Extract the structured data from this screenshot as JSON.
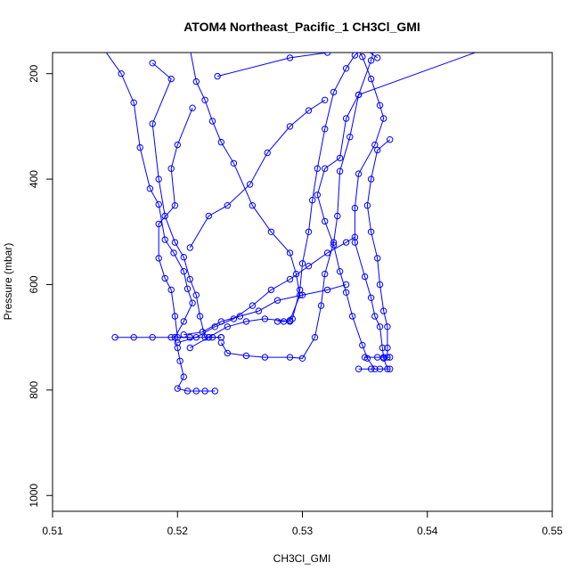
{
  "chart_data": {
    "type": "line",
    "title": "ATOM4 Northeast_Pacific_1 CH3Cl_GMI",
    "xlabel": "CH3Cl_GMI",
    "ylabel": "Pressure (mbar)",
    "xlim": [
      0.51,
      0.55
    ],
    "ylim": [
      1030,
      160
    ],
    "y_inverted": true,
    "xticks": [
      0.51,
      0.52,
      0.53,
      0.54,
      0.55
    ],
    "xtick_labels": [
      "0.51",
      "0.52",
      "0.53",
      "0.54",
      "0.55"
    ],
    "yticks": [
      200,
      400,
      600,
      800,
      1000
    ],
    "ytick_labels": [
      "200",
      "400",
      "600",
      "800",
      "1000"
    ],
    "grid": false,
    "legend": "none",
    "marker": "open-circle",
    "color": "#0000ff",
    "series": [
      {
        "points": [
          [
            0.514,
            150
          ],
          [
            0.5155,
            200
          ],
          [
            0.5165,
            255
          ],
          [
            0.517,
            340
          ],
          [
            0.5178,
            418
          ],
          [
            0.5185,
            448
          ],
          [
            0.519,
            515
          ],
          [
            0.5197,
            540
          ],
          [
            0.5205,
            575
          ],
          [
            0.5208,
            608
          ],
          [
            0.5212,
            635
          ],
          [
            0.5205,
            670
          ],
          [
            0.5198,
            700
          ],
          [
            0.52,
            720
          ],
          [
            0.5202,
            745
          ],
          [
            0.5205,
            775
          ],
          [
            0.52,
            797
          ],
          [
            0.5208,
            802
          ],
          [
            0.5215,
            802
          ],
          [
            0.5222,
            802
          ],
          [
            0.523,
            802
          ]
        ]
      },
      {
        "points": [
          [
            0.518,
            180
          ],
          [
            0.5195,
            210
          ],
          [
            0.518,
            295
          ],
          [
            0.5185,
            400
          ],
          [
            0.519,
            470
          ],
          [
            0.5198,
            520
          ],
          [
            0.5205,
            548
          ],
          [
            0.521,
            590
          ],
          [
            0.5215,
            620
          ],
          [
            0.5218,
            660
          ],
          [
            0.5222,
            700
          ],
          [
            0.5228,
            700
          ],
          [
            0.5235,
            700
          ]
        ]
      },
      {
        "points": [
          [
            0.5208,
            128
          ],
          [
            0.5215,
            215
          ],
          [
            0.5222,
            250
          ],
          [
            0.5228,
            290
          ],
          [
            0.5235,
            330
          ],
          [
            0.5245,
            370
          ],
          [
            0.526,
            450
          ],
          [
            0.5275,
            500
          ],
          [
            0.529,
            540
          ],
          [
            0.5295,
            580
          ],
          [
            0.5298,
            620
          ],
          [
            0.529,
            668
          ],
          [
            0.5285,
            670
          ],
          [
            0.528,
            670
          ]
        ]
      },
      {
        "points": [
          [
            0.5212,
            265
          ],
          [
            0.52,
            335
          ],
          [
            0.5195,
            380
          ],
          [
            0.5198,
            450
          ],
          [
            0.5185,
            485
          ],
          [
            0.5185,
            550
          ],
          [
            0.519,
            588
          ],
          [
            0.5195,
            610
          ],
          [
            0.5198,
            660
          ],
          [
            0.52,
            700
          ],
          [
            0.521,
            700
          ]
        ]
      },
      {
        "points": [
          [
            0.5355,
            140
          ],
          [
            0.5342,
            165
          ],
          [
            0.5335,
            190
          ],
          [
            0.5325,
            235
          ],
          [
            0.5318,
            305
          ],
          [
            0.5312,
            380
          ],
          [
            0.5308,
            440
          ],
          [
            0.5305,
            500
          ],
          [
            0.53,
            560
          ],
          [
            0.5298,
            610
          ],
          [
            0.5292,
            665
          ]
        ]
      },
      {
        "points": [
          [
            0.545,
            150
          ],
          [
            0.5345,
            240
          ],
          [
            0.5335,
            285
          ],
          [
            0.533,
            360
          ],
          [
            0.5318,
            380
          ],
          [
            0.5312,
            430
          ],
          [
            0.5318,
            480
          ],
          [
            0.5325,
            525
          ],
          [
            0.533,
            575
          ],
          [
            0.5335,
            615
          ],
          [
            0.534,
            660
          ],
          [
            0.5348,
            715
          ],
          [
            0.5352,
            740
          ],
          [
            0.5358,
            760
          ]
        ]
      },
      {
        "points": [
          [
            0.533,
            100
          ],
          [
            0.5348,
            168
          ],
          [
            0.5355,
            210
          ],
          [
            0.5362,
            260
          ],
          [
            0.5365,
            285
          ],
          [
            0.5358,
            335
          ],
          [
            0.5345,
            390
          ],
          [
            0.5342,
            455
          ],
          [
            0.5342,
            520
          ],
          [
            0.535,
            585
          ],
          [
            0.5355,
            625
          ],
          [
            0.5358,
            660
          ],
          [
            0.5362,
            680
          ],
          [
            0.5364,
            720
          ],
          [
            0.5365,
            740
          ],
          [
            0.5368,
            760
          ]
        ]
      },
      {
        "points": [
          [
            0.536,
            130
          ],
          [
            0.5355,
            175
          ],
          [
            0.5345,
            240
          ],
          [
            0.5338,
            320
          ],
          [
            0.533,
            385
          ],
          [
            0.5328,
            470
          ],
          [
            0.5325,
            520
          ],
          [
            0.5318,
            580
          ],
          [
            0.5315,
            640
          ],
          [
            0.531,
            700
          ],
          [
            0.53,
            740
          ],
          [
            0.529,
            738
          ],
          [
            0.527,
            738
          ],
          [
            0.5255,
            735
          ],
          [
            0.524,
            730
          ],
          [
            0.5235,
            710
          ]
        ]
      },
      {
        "points": [
          [
            0.537,
            325
          ],
          [
            0.536,
            345
          ],
          [
            0.5355,
            400
          ],
          [
            0.5352,
            450
          ],
          [
            0.5355,
            500
          ],
          [
            0.536,
            550
          ],
          [
            0.5362,
            600
          ],
          [
            0.5365,
            650
          ],
          [
            0.5368,
            680
          ],
          [
            0.5368,
            720
          ],
          [
            0.5368,
            738
          ]
        ]
      },
      {
        "points": [
          [
            0.536,
            170
          ],
          [
            0.5345,
            145
          ],
          [
            0.533,
            100
          ]
        ]
      },
      {
        "points": [
          [
            0.515,
            700
          ],
          [
            0.5165,
            700
          ],
          [
            0.518,
            700
          ],
          [
            0.5195,
            700
          ],
          [
            0.521,
            700
          ],
          [
            0.5225,
            700
          ],
          [
            0.5235,
            700
          ]
        ]
      },
      {
        "points": [
          [
            0.52,
            710
          ],
          [
            0.5215,
            700
          ],
          [
            0.523,
            680
          ],
          [
            0.5245,
            665
          ],
          [
            0.526,
            640
          ],
          [
            0.5275,
            610
          ],
          [
            0.529,
            590
          ],
          [
            0.5305,
            565
          ],
          [
            0.532,
            540
          ],
          [
            0.5335,
            520
          ],
          [
            0.5342,
            510
          ]
        ]
      },
      {
        "points": [
          [
            0.5232,
            205
          ],
          [
            0.529,
            170
          ],
          [
            0.532,
            160
          ],
          [
            0.535,
            150
          ]
        ]
      },
      {
        "points": [
          [
            0.521,
            530
          ],
          [
            0.5225,
            470
          ],
          [
            0.524,
            450
          ],
          [
            0.5258,
            410
          ],
          [
            0.5272,
            350
          ],
          [
            0.529,
            300
          ],
          [
            0.5305,
            270
          ],
          [
            0.5318,
            250
          ]
        ]
      },
      {
        "points": [
          [
            0.5205,
            695
          ],
          [
            0.522,
            690
          ],
          [
            0.5235,
            670
          ],
          [
            0.525,
            660
          ],
          [
            0.5265,
            650
          ],
          [
            0.528,
            630
          ],
          [
            0.53,
            620
          ],
          [
            0.532,
            610
          ],
          [
            0.5335,
            600
          ]
        ]
      },
      {
        "points": [
          [
            0.521,
            720
          ],
          [
            0.5225,
            700
          ],
          [
            0.524,
            680
          ],
          [
            0.5255,
            670
          ],
          [
            0.527,
            665
          ],
          [
            0.529,
            670
          ]
        ]
      },
      {
        "points": [
          [
            0.535,
            738
          ],
          [
            0.536,
            738
          ],
          [
            0.5365,
            738
          ],
          [
            0.537,
            738
          ]
        ]
      },
      {
        "points": [
          [
            0.5345,
            760
          ],
          [
            0.5355,
            760
          ],
          [
            0.5362,
            760
          ],
          [
            0.537,
            760
          ]
        ]
      }
    ]
  }
}
